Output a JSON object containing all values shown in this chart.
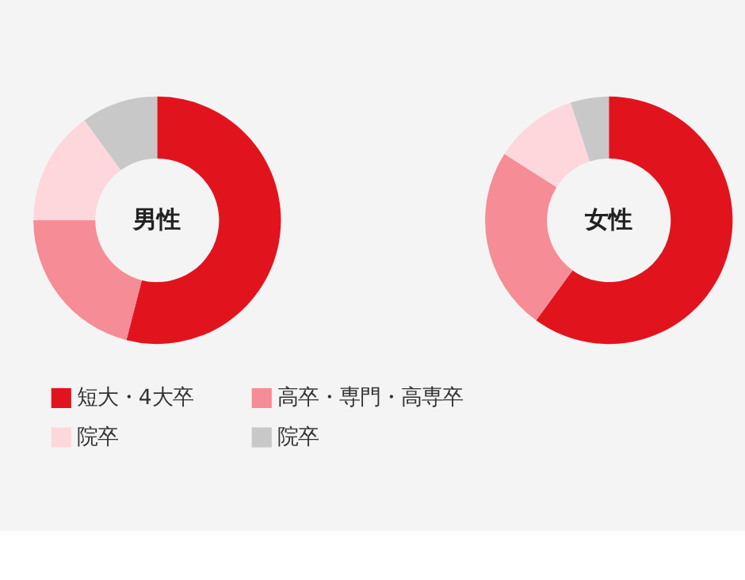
{
  "chart_data": [
    {
      "type": "donut",
      "title": "男性",
      "categories": [
        "短大・4大卒",
        "高卒・専門・高専卒",
        "院卒",
        "院卒"
      ],
      "values": [
        54,
        21,
        15,
        10
      ],
      "colors": [
        "#e1141e",
        "#f68c96",
        "#fdd7dc",
        "#c8c8c8"
      ],
      "legend": "bottom"
    },
    {
      "type": "donut",
      "title": "女性",
      "values": [
        60,
        24,
        11,
        5
      ],
      "colors": [
        "#e1141e",
        "#f68c96",
        "#fdd7dc",
        "#c8c8c8"
      ]
    }
  ]
}
